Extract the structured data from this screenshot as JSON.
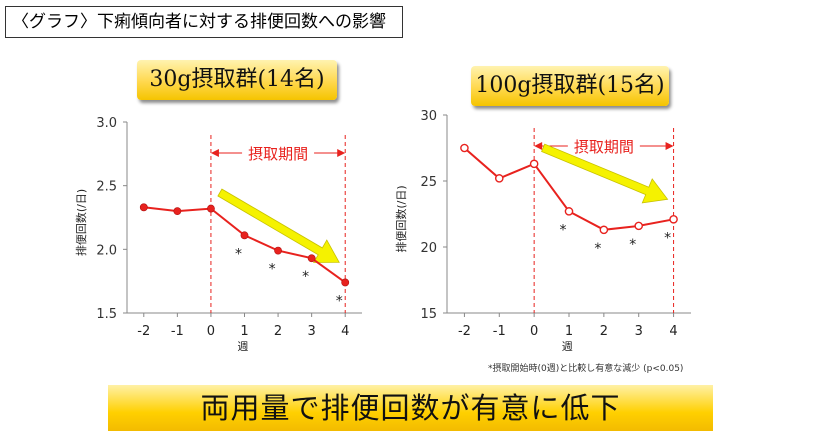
{
  "title": "〈グラフ〉下痢傾向者に対する排便回数への影響",
  "conclusion": "両用量で排便回数が有意に低下",
  "footnote": "*摂取開始時(0週)と比較し有意な減少 (p<0.05)",
  "colors": {
    "line": "#e8221e",
    "arrow": "#f5f200",
    "banner": "#ffd000"
  },
  "chart_data": [
    {
      "type": "line",
      "panel_label": "30g摂取群(14名)",
      "x": [
        -2,
        -1,
        0,
        1,
        2,
        3,
        4
      ],
      "x_ticks": [
        "-2",
        "-1",
        "0",
        "1",
        "2",
        "3",
        "4"
      ],
      "values": [
        2.33,
        2.3,
        2.32,
        2.11,
        1.99,
        1.93,
        1.74
      ],
      "significant": [
        false,
        false,
        false,
        true,
        true,
        true,
        true
      ],
      "xlabel": "週",
      "ylabel": "排便回数(/日)",
      "ylim": [
        1.5,
        3.0
      ],
      "y_ticks": [
        "1.5",
        "2.0",
        "2.5",
        "3.0"
      ],
      "period_label": "摂取期間",
      "period_range": [
        0,
        4
      ],
      "marker": "filled-circle"
    },
    {
      "type": "line",
      "panel_label": "100g摂取群(15名)",
      "x": [
        -2,
        -1,
        0,
        1,
        2,
        3,
        4
      ],
      "x_ticks": [
        "-2",
        "-1",
        "0",
        "1",
        "2",
        "3",
        "4"
      ],
      "values": [
        27.5,
        25.2,
        26.3,
        22.7,
        21.3,
        21.6,
        22.1
      ],
      "significant": [
        false,
        false,
        false,
        true,
        true,
        true,
        true
      ],
      "xlabel": "週",
      "ylabel": "排便回数(/日)",
      "ylim": [
        15,
        30
      ],
      "y_ticks": [
        "15",
        "20",
        "25",
        "30"
      ],
      "period_label": "摂取期間",
      "period_range": [
        0,
        4
      ],
      "marker": "open-circle"
    }
  ]
}
